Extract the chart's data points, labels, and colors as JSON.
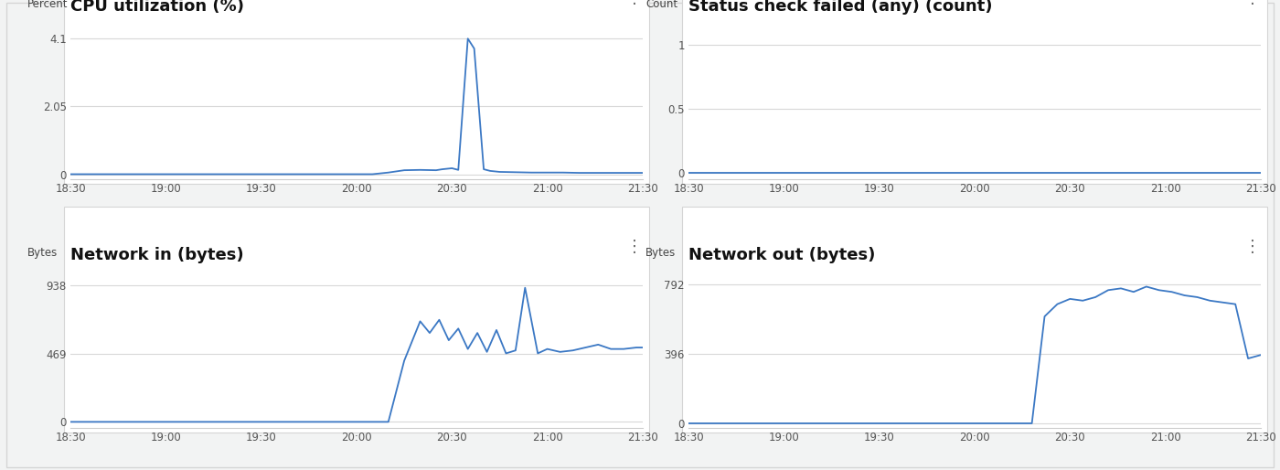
{
  "background_color": "#f2f3f3",
  "panel_bg": "#ffffff",
  "border_color": "#d5d5d5",
  "title_fontsize": 13,
  "label_fontsize": 8.5,
  "tick_fontsize": 8.5,
  "line_color": "#3b78c4",
  "axis_label_color": "#444444",
  "title_color": "#111111",
  "time_ticks": [
    0,
    30,
    60,
    90,
    120,
    150,
    180
  ],
  "time_labels": [
    "18:30",
    "19:00",
    "19:30",
    "20:00",
    "20:30",
    "21:00",
    "21:30"
  ],
  "cpu": {
    "title": "CPU utilization (%)",
    "ylabel": "Percent",
    "yticks": [
      0,
      2.05,
      4.1
    ],
    "ylim": [
      -0.15,
      4.7
    ],
    "x": [
      0,
      5,
      10,
      20,
      30,
      40,
      50,
      60,
      70,
      80,
      90,
      95,
      100,
      105,
      110,
      115,
      117,
      120,
      122,
      125,
      127,
      130,
      132,
      135,
      140,
      145,
      150,
      155,
      160,
      165,
      170,
      175,
      180
    ],
    "y": [
      0,
      0,
      0,
      0,
      0,
      0,
      0,
      0,
      0,
      0,
      0,
      0,
      0.05,
      0.12,
      0.13,
      0.12,
      0.15,
      0.18,
      0.13,
      4.1,
      3.8,
      0.15,
      0.1,
      0.07,
      0.06,
      0.05,
      0.05,
      0.05,
      0.04,
      0.04,
      0.04,
      0.04,
      0.04
    ]
  },
  "status": {
    "title": "Status check failed (any) (count)",
    "ylabel": "Count",
    "yticks": [
      0,
      0.5,
      1
    ],
    "ylim": [
      -0.05,
      1.2
    ],
    "x": [
      0,
      30,
      60,
      90,
      115,
      120,
      125,
      130,
      135,
      140,
      145,
      150,
      155,
      160,
      165,
      170,
      175,
      180
    ],
    "y": [
      0,
      0,
      0,
      0,
      0,
      0,
      0,
      0,
      0,
      0,
      0,
      0,
      0,
      0,
      0,
      0,
      0,
      0
    ]
  },
  "net_in": {
    "title": "Network in (bytes)",
    "ylabel": "Bytes",
    "yticks": [
      0,
      469,
      938
    ],
    "ylim": [
      -40,
      1060
    ],
    "x": [
      0,
      30,
      60,
      90,
      100,
      105,
      110,
      113,
      116,
      119,
      122,
      125,
      128,
      131,
      134,
      137,
      140,
      143,
      147,
      150,
      154,
      158,
      162,
      166,
      170,
      174,
      178,
      180
    ],
    "y": [
      0,
      0,
      0,
      0,
      0,
      420,
      690,
      610,
      700,
      560,
      640,
      500,
      610,
      480,
      630,
      470,
      490,
      920,
      470,
      500,
      480,
      490,
      510,
      530,
      500,
      500,
      510,
      510
    ]
  },
  "net_out": {
    "title": "Network out (bytes)",
    "ylabel": "Bytes",
    "yticks": [
      0,
      396,
      792
    ],
    "ylim": [
      -25,
      890
    ],
    "x": [
      0,
      30,
      60,
      90,
      108,
      112,
      116,
      120,
      124,
      128,
      132,
      136,
      140,
      144,
      148,
      152,
      156,
      160,
      164,
      168,
      172,
      176,
      180
    ],
    "y": [
      0,
      0,
      0,
      0,
      0,
      610,
      680,
      710,
      700,
      720,
      760,
      770,
      750,
      780,
      760,
      750,
      730,
      720,
      700,
      690,
      680,
      370,
      390
    ]
  }
}
